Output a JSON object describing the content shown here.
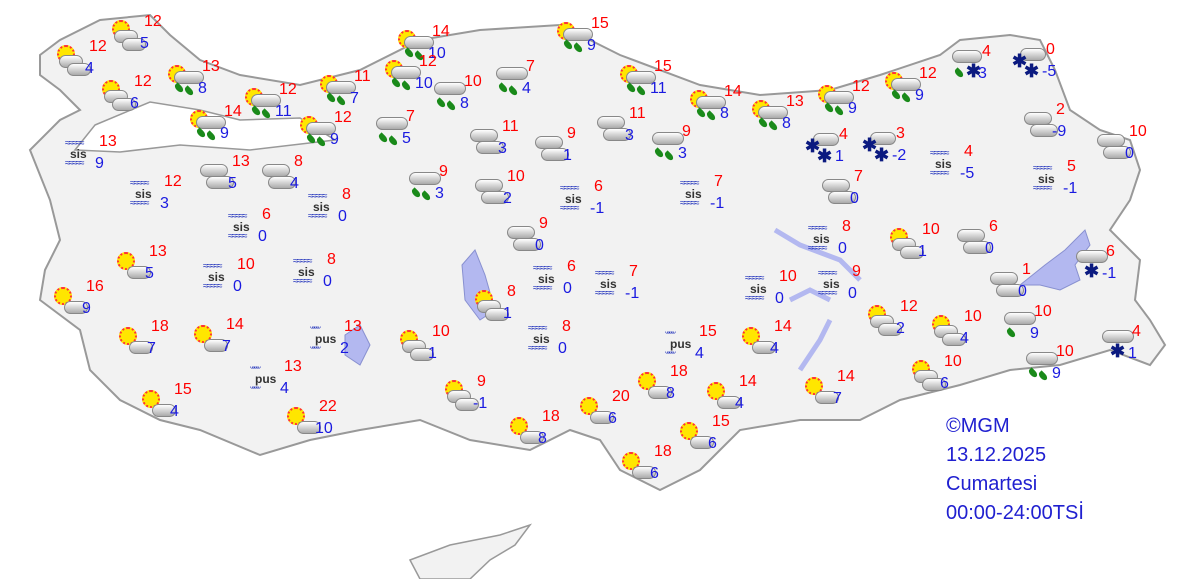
{
  "legend": {
    "copyright": "©MGM",
    "date": "13.12.2025",
    "day": "Cumartesi",
    "period": "00:00-24:00TSİ"
  },
  "colors": {
    "land": "#f2f2f2",
    "border": "#999999",
    "lake": "#b3b8f0",
    "high": "#ff0000",
    "low": "#1a1ae0"
  },
  "icon_labels": {
    "fog": "sis",
    "haze": "pus"
  },
  "stations": [
    {
      "icon": "partly-cloudy",
      "high": "12",
      "low": "4"
    },
    {
      "icon": "partly-cloudy",
      "high": "12",
      "low": "5"
    },
    {
      "icon": "partly-cloudy",
      "high": "12",
      "low": "6"
    },
    {
      "icon": "rain-sun",
      "high": "13",
      "low": "8"
    },
    {
      "icon": "rain-sun",
      "high": "14",
      "low": "9"
    },
    {
      "icon": "rain-sun",
      "high": "12",
      "low": "11"
    },
    {
      "icon": "rain-sun",
      "high": "11",
      "low": "7"
    },
    {
      "icon": "rain-sun",
      "high": "12",
      "low": "9"
    },
    {
      "icon": "fog",
      "high": "13",
      "low": "9"
    },
    {
      "icon": "fog",
      "high": "12",
      "low": "3"
    },
    {
      "icon": "cloudy",
      "high": "13",
      "low": "5"
    },
    {
      "icon": "cloudy",
      "high": "8",
      "low": "4"
    },
    {
      "icon": "fog",
      "high": "6",
      "low": "0"
    },
    {
      "icon": "fog",
      "high": "8",
      "low": "0"
    },
    {
      "icon": "sunny",
      "high": "13",
      "low": "5"
    },
    {
      "icon": "fog",
      "high": "10",
      "low": "0"
    },
    {
      "icon": "fog",
      "high": "8",
      "low": "0"
    },
    {
      "icon": "sunny",
      "high": "16",
      "low": "9"
    },
    {
      "icon": "sunny",
      "high": "18",
      "low": "7"
    },
    {
      "icon": "sunny",
      "high": "14",
      "low": "7"
    },
    {
      "icon": "haze",
      "high": "13",
      "low": "2"
    },
    {
      "icon": "haze",
      "high": "13",
      "low": "4"
    },
    {
      "icon": "sunny",
      "high": "15",
      "low": "4"
    },
    {
      "icon": "sunny",
      "high": "22",
      "low": "10"
    },
    {
      "icon": "rain-sun",
      "high": "14",
      "low": "10"
    },
    {
      "icon": "rain-sun",
      "high": "12",
      "low": "10"
    },
    {
      "icon": "rain",
      "high": "10",
      "low": "8"
    },
    {
      "icon": "rain",
      "high": "7",
      "low": "4"
    },
    {
      "icon": "rain",
      "high": "7",
      "low": "5"
    },
    {
      "icon": "cloudy",
      "high": "11",
      "low": "3"
    },
    {
      "icon": "cloudy",
      "high": "9",
      "low": "1"
    },
    {
      "icon": "rain",
      "high": "9",
      "low": "3"
    },
    {
      "icon": "cloudy",
      "high": "10",
      "low": "2"
    },
    {
      "icon": "rain-sun",
      "high": "15",
      "low": "9"
    },
    {
      "icon": "rain-sun",
      "high": "15",
      "low": "11"
    },
    {
      "icon": "rain-sun",
      "high": "14",
      "low": "8"
    },
    {
      "icon": "rain-sun",
      "high": "13",
      "low": "8"
    },
    {
      "icon": "cloudy",
      "high": "11",
      "low": "3"
    },
    {
      "icon": "rain",
      "high": "9",
      "low": "3"
    },
    {
      "icon": "fog",
      "high": "6",
      "low": "-1"
    },
    {
      "icon": "fog",
      "high": "7",
      "low": "-1"
    },
    {
      "icon": "cloudy",
      "high": "9",
      "low": "0"
    },
    {
      "icon": "rain-sun",
      "high": "12",
      "low": "9"
    },
    {
      "icon": "rain-sun",
      "high": "12",
      "low": "9"
    },
    {
      "icon": "rain-snow",
      "high": "4",
      "low": "3"
    },
    {
      "icon": "snow",
      "high": "0",
      "low": "-5"
    },
    {
      "icon": "cloudy",
      "high": "2",
      "low": "-9"
    },
    {
      "icon": "cloudy",
      "high": "10",
      "low": "0"
    },
    {
      "icon": "snow",
      "high": "4",
      "low": "1"
    },
    {
      "icon": "snow",
      "high": "3",
      "low": "-2"
    },
    {
      "icon": "fog",
      "high": "4",
      "low": "-5"
    },
    {
      "icon": "fog",
      "high": "5",
      "low": "-1"
    },
    {
      "icon": "cloudy",
      "high": "7",
      "low": "0"
    },
    {
      "icon": "fog",
      "high": "8",
      "low": "0"
    },
    {
      "icon": "partly-cloudy",
      "high": "10",
      "low": "1"
    },
    {
      "icon": "cloudy",
      "high": "6",
      "low": "0"
    },
    {
      "icon": "cloud-snow",
      "high": "6",
      "low": "-1"
    },
    {
      "icon": "cloudy",
      "high": "1",
      "low": "0"
    },
    {
      "icon": "fog",
      "high": "9",
      "low": "0"
    },
    {
      "icon": "fog",
      "high": "10",
      "low": "0"
    },
    {
      "icon": "fog",
      "high": "6",
      "low": "0"
    },
    {
      "icon": "fog",
      "high": "7",
      "low": "-1"
    },
    {
      "icon": "partly-cloudy",
      "high": "8",
      "low": "1"
    },
    {
      "icon": "fog",
      "high": "8",
      "low": "0"
    },
    {
      "icon": "partly-cloudy",
      "high": "10",
      "low": "1"
    },
    {
      "icon": "partly-cloudy",
      "high": "12",
      "low": "2"
    },
    {
      "icon": "partly-cloudy",
      "high": "10",
      "low": "4"
    },
    {
      "icon": "cloud-rain",
      "high": "10",
      "low": "9"
    },
    {
      "icon": "partly-cloudy",
      "high": "10",
      "low": "6"
    },
    {
      "icon": "rain",
      "high": "10",
      "low": "9"
    },
    {
      "icon": "cloud-snow",
      "high": "4",
      "low": "1"
    },
    {
      "icon": "sunny",
      "high": "14",
      "low": "7"
    },
    {
      "icon": "sunny",
      "high": "14",
      "low": "4"
    },
    {
      "icon": "haze",
      "high": "15",
      "low": "4"
    },
    {
      "icon": "sunny",
      "high": "18",
      "low": "8"
    },
    {
      "icon": "sunny",
      "high": "14",
      "low": "4"
    },
    {
      "icon": "partly-cloudy",
      "high": "9",
      "low": "-1"
    },
    {
      "icon": "sunny",
      "high": "18",
      "low": "8"
    },
    {
      "icon": "sunny",
      "high": "20",
      "low": "6"
    },
    {
      "icon": "sunny",
      "high": "15",
      "low": "6"
    },
    {
      "icon": "sunny",
      "high": "18",
      "low": "6"
    }
  ]
}
